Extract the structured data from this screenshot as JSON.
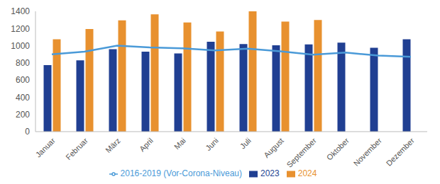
{
  "chart_data": {
    "type": "bar",
    "categories": [
      "Januar",
      "Februar",
      "März",
      "April",
      "Mai",
      "Juni",
      "Juli",
      "August",
      "September",
      "Oktober",
      "November",
      "Dezember"
    ],
    "series": [
      {
        "name": "2023",
        "color": "#203f92",
        "values": [
          775,
          830,
          960,
          930,
          910,
          1045,
          1020,
          1005,
          1015,
          1035,
          975,
          1075
        ]
      },
      {
        "name": "2024",
        "color": "#e8912f",
        "values": [
          1075,
          1195,
          1295,
          1365,
          1270,
          1165,
          1400,
          1280,
          1300,
          null,
          null,
          null
        ]
      },
      {
        "name": "2016-2019 (Vor-Corona-Niveau)",
        "color": "#4a9ad8",
        "type": "line",
        "values": [
          900,
          930,
          1000,
          980,
          970,
          945,
          965,
          935,
          895,
          920,
          885,
          870
        ]
      }
    ],
    "ylim": [
      0,
      1400
    ],
    "yticks": [
      0,
      200,
      400,
      600,
      800,
      1000,
      1200,
      1400
    ],
    "grid": false,
    "legend": "bottom"
  }
}
